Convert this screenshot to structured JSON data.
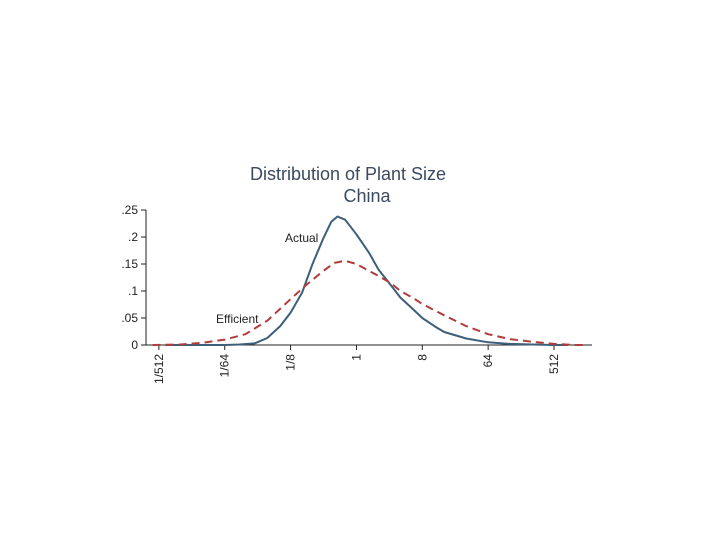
{
  "chart_data": {
    "type": "line",
    "title": "Distribution of Plant Size",
    "subtitle": "China",
    "xlabel": "",
    "ylabel": "",
    "x_scale": "log2",
    "xlim": [
      0.0013,
      1700
    ],
    "ylim": [
      0,
      0.25
    ],
    "grid": false,
    "legend": "none",
    "y_ticks": [
      {
        "value": 0,
        "label": "0"
      },
      {
        "value": 0.05,
        "label": ".05"
      },
      {
        "value": 0.1,
        "label": ".1"
      },
      {
        "value": 0.15,
        "label": ".15"
      },
      {
        "value": 0.2,
        "label": ".2"
      },
      {
        "value": 0.25,
        "label": ".25"
      }
    ],
    "x_ticks": [
      {
        "value": 0.001953125,
        "label": "1/512"
      },
      {
        "value": 0.015625,
        "label": "1/64"
      },
      {
        "value": 0.125,
        "label": "1/8"
      },
      {
        "value": 1,
        "label": "1"
      },
      {
        "value": 8,
        "label": "8"
      },
      {
        "value": 64,
        "label": "64"
      },
      {
        "value": 512,
        "label": "512"
      }
    ],
    "annotations": [
      {
        "text": "Actual",
        "series": "Actual"
      },
      {
        "text": "Efficient",
        "series": "Efficient"
      }
    ],
    "series": [
      {
        "name": "Actual",
        "color": "#3d5f7a",
        "style": "solid",
        "x": [
          0.0024,
          0.0039,
          0.0078,
          0.0156,
          0.025,
          0.04,
          0.06,
          0.09,
          0.125,
          0.18,
          0.25,
          0.35,
          0.45,
          0.55,
          0.7,
          1,
          1.5,
          2,
          3,
          4,
          6,
          8,
          12,
          16,
          32,
          64,
          128,
          256,
          512,
          800
        ],
        "y": [
          0,
          0,
          0,
          0,
          0.001,
          0.003,
          0.013,
          0.035,
          0.06,
          0.097,
          0.15,
          0.197,
          0.228,
          0.238,
          0.232,
          0.205,
          0.17,
          0.14,
          0.11,
          0.088,
          0.066,
          0.05,
          0.034,
          0.024,
          0.012,
          0.005,
          0.002,
          0.001,
          0,
          0
        ]
      },
      {
        "name": "Efficient",
        "color": "#b23b3b",
        "style": "dashed",
        "x": [
          0.0016,
          0.0039,
          0.0078,
          0.0156,
          0.03,
          0.06,
          0.125,
          0.2,
          0.35,
          0.5,
          0.7,
          1,
          1.5,
          2,
          3,
          4,
          6,
          8,
          16,
          32,
          64,
          128,
          256,
          512,
          1000,
          1400
        ],
        "y": [
          0,
          0.001,
          0.004,
          0.01,
          0.02,
          0.045,
          0.085,
          0.11,
          0.137,
          0.152,
          0.156,
          0.15,
          0.137,
          0.128,
          0.114,
          0.1,
          0.087,
          0.076,
          0.055,
          0.035,
          0.02,
          0.011,
          0.006,
          0.002,
          0,
          0
        ]
      }
    ]
  }
}
